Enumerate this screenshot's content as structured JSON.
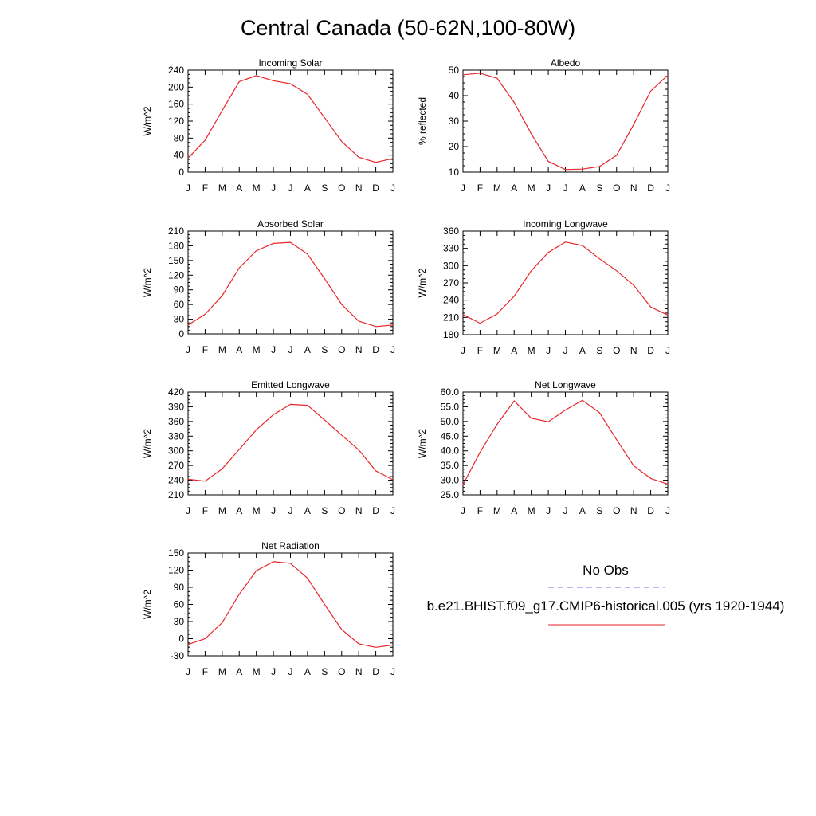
{
  "figure": {
    "title": "Central Canada (50-62N,100-80W)"
  },
  "colors": {
    "model_line": "#e8262b",
    "obs_line": "#6f6fe8",
    "axis": "#000000"
  },
  "legend": {
    "obs_label": "No Obs",
    "model_label": "b.e21.BHIST.f09_g17.CMIP6-historical.005 (yrs 1920-1944)"
  },
  "chart_data": [
    {
      "type": "line",
      "title": "Incoming Solar",
      "ylabel": "W/m^2",
      "categories": [
        "J",
        "F",
        "M",
        "A",
        "M",
        "J",
        "J",
        "A",
        "S",
        "O",
        "N",
        "D",
        "J"
      ],
      "ylim": [
        0,
        240
      ],
      "yticks": [
        "0",
        "40",
        "80",
        "120",
        "160",
        "200",
        "240"
      ],
      "series": [
        {
          "values": [
            33,
            75,
            145,
            213,
            227,
            215,
            208,
            183,
            128,
            72,
            35,
            23,
            32
          ]
        }
      ]
    },
    {
      "type": "line",
      "title": "Albedo",
      "ylabel": "% reflected",
      "categories": [
        "J",
        "F",
        "M",
        "A",
        "M",
        "J",
        "J",
        "A",
        "S",
        "O",
        "N",
        "D",
        "J"
      ],
      "ylim": [
        10,
        50
      ],
      "yticks": [
        "10",
        "20",
        "30",
        "40",
        "50"
      ],
      "series": [
        {
          "values": [
            48.2,
            48.8,
            46.8,
            37.3,
            25.0,
            14.2,
            11.0,
            11.2,
            12.2,
            16.6,
            28.7,
            41.8,
            48.0
          ]
        }
      ]
    },
    {
      "type": "line",
      "title": "Absorbed Solar",
      "ylabel": "W/m^2",
      "categories": [
        "J",
        "F",
        "M",
        "A",
        "M",
        "J",
        "J",
        "A",
        "S",
        "O",
        "N",
        "D",
        "J"
      ],
      "ylim": [
        0,
        210
      ],
      "yticks": [
        "0",
        "30",
        "60",
        "90",
        "120",
        "150",
        "180",
        "210"
      ],
      "series": [
        {
          "values": [
            18,
            40,
            78,
            135,
            170,
            185,
            187,
            163,
            113,
            60,
            26,
            15,
            18
          ]
        }
      ]
    },
    {
      "type": "line",
      "title": "Incoming Longwave",
      "ylabel": "W/m^2",
      "categories": [
        "J",
        "F",
        "M",
        "A",
        "M",
        "J",
        "J",
        "A",
        "S",
        "O",
        "N",
        "D",
        "J"
      ],
      "ylim": [
        180,
        360
      ],
      "yticks": [
        "180",
        "210",
        "240",
        "270",
        "300",
        "330",
        "360"
      ],
      "series": [
        {
          "values": [
            215,
            200,
            216,
            247,
            291,
            323,
            341,
            335,
            312,
            291,
            266,
            228,
            214
          ]
        }
      ]
    },
    {
      "type": "line",
      "title": "Emitted Longwave",
      "ylabel": "W/m^2",
      "categories": [
        "J",
        "F",
        "M",
        "A",
        "M",
        "J",
        "J",
        "A",
        "S",
        "O",
        "N",
        "D",
        "J"
      ],
      "ylim": [
        210,
        420
      ],
      "yticks": [
        "210",
        "240",
        "270",
        "300",
        "330",
        "360",
        "390",
        "420"
      ],
      "series": [
        {
          "values": [
            242,
            238,
            263,
            303,
            343,
            374,
            395,
            393,
            363,
            332,
            302,
            259,
            241
          ]
        }
      ]
    },
    {
      "type": "line",
      "title": "Net Longwave",
      "ylabel": "W/m^2",
      "categories": [
        "J",
        "F",
        "M",
        "A",
        "M",
        "J",
        "J",
        "A",
        "S",
        "O",
        "N",
        "D",
        "J"
      ],
      "ylim": [
        25,
        60
      ],
      "yticks": [
        "25.0",
        "30.0",
        "35.0",
        "40.0",
        "45.0",
        "50.0",
        "55.0",
        "60.0"
      ],
      "series": [
        {
          "values": [
            28.5,
            39.5,
            49.0,
            57.0,
            51.1,
            49.9,
            53.9,
            57.2,
            53.0,
            43.8,
            34.9,
            30.6,
            28.7
          ]
        }
      ]
    },
    {
      "type": "line",
      "title": "Net Radiation",
      "ylabel": "W/m^2",
      "categories": [
        "J",
        "F",
        "M",
        "A",
        "M",
        "J",
        "J",
        "A",
        "S",
        "O",
        "N",
        "D",
        "J"
      ],
      "ylim": [
        -30,
        150
      ],
      "yticks": [
        "-30",
        "0",
        "30",
        "60",
        "90",
        "120",
        "150"
      ],
      "series": [
        {
          "values": [
            -10,
            0,
            28,
            78,
            119,
            135,
            132,
            106,
            60,
            16,
            -9,
            -15,
            -11
          ]
        }
      ]
    }
  ]
}
